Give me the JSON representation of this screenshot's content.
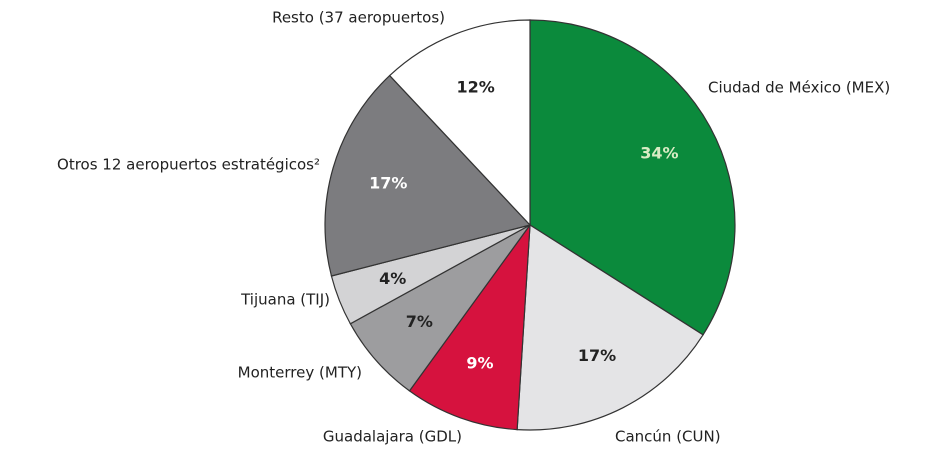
{
  "chart_data": {
    "type": "pie",
    "categories": [
      "Ciudad de México (MEX)",
      "Cancún (CUN)",
      "Guadalajara (GDL)",
      "Monterrey (MTY)",
      "Tijuana (TIJ)",
      "Otros 12 aeropuertos estratégicos²",
      "Resto (37 aeropuertos)"
    ],
    "values": [
      34,
      17,
      9,
      7,
      4,
      17,
      12
    ],
    "value_labels": [
      "34%",
      "17%",
      "9%",
      "7%",
      "4%",
      "17%",
      "12%"
    ],
    "colors": [
      "#0b8a3c",
      "#e4e4e6",
      "#d6123e",
      "#9d9d9f",
      "#d3d3d5",
      "#7c7c7f",
      "#ffffff"
    ]
  }
}
